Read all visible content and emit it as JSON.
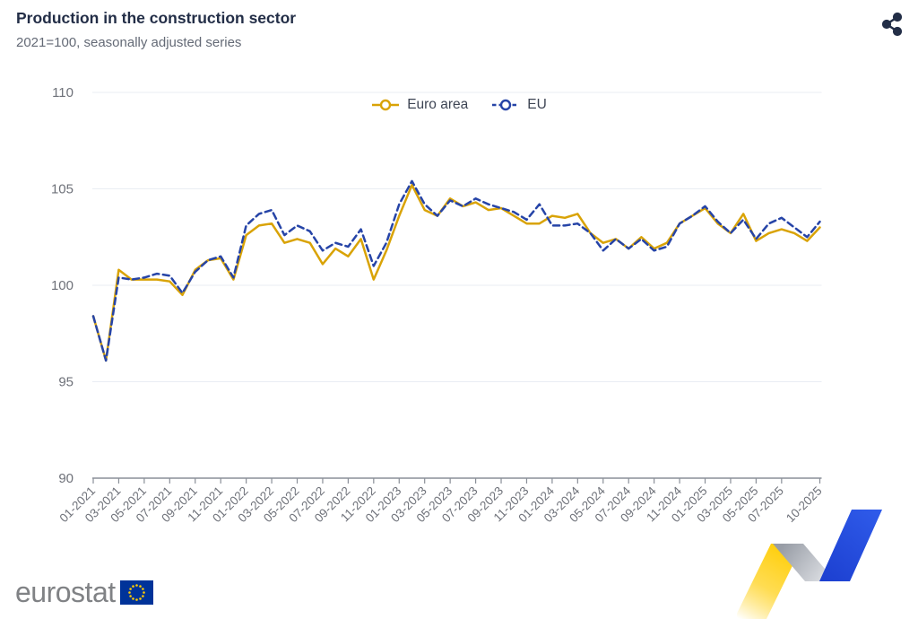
{
  "header": {
    "title": "Production in the construction sector",
    "subtitle": "2021=100, seasonally adjusted series"
  },
  "legend": {
    "items": [
      {
        "label": "Euro area"
      },
      {
        "label": "EU"
      }
    ]
  },
  "footer": {
    "logo_text": "eurostat"
  },
  "colors": {
    "euro_area_line": "#D9A306",
    "eu_line": "#2644A7",
    "title_text": "#232E47",
    "axis_text": "#6E7179",
    "gridline": "#E9EDF3",
    "axis_line": "#8A8F98",
    "eu_flag_blue": "#003399",
    "eu_flag_stars": "#FFCC00"
  },
  "chart_data": {
    "type": "line",
    "title": "Production in the construction sector",
    "subtitle": "2021=100, seasonally adjusted series",
    "ylabel": "",
    "xlabel": "",
    "ylim": [
      90,
      110
    ],
    "yticks": [
      90,
      95,
      100,
      105,
      110
    ],
    "grid": "horizontal",
    "legend_position": "top-center",
    "x": [
      "01-2021",
      "02-2021",
      "03-2021",
      "04-2021",
      "05-2021",
      "06-2021",
      "07-2021",
      "08-2021",
      "09-2021",
      "10-2021",
      "11-2021",
      "12-2021",
      "01-2022",
      "02-2022",
      "03-2022",
      "04-2022",
      "05-2022",
      "06-2022",
      "07-2022",
      "08-2022",
      "09-2022",
      "10-2022",
      "11-2022",
      "12-2022",
      "01-2023",
      "02-2023",
      "03-2023",
      "04-2023",
      "05-2023",
      "06-2023",
      "07-2023",
      "08-2023",
      "09-2023",
      "10-2023",
      "11-2023",
      "12-2023",
      "01-2024",
      "02-2024",
      "03-2024",
      "04-2024",
      "05-2024",
      "06-2024",
      "07-2024",
      "08-2024",
      "09-2024",
      "10-2024",
      "11-2024",
      "12-2024",
      "01-2025",
      "02-2025",
      "03-2025",
      "04-2025",
      "05-2025",
      "06-2025",
      "07-2025",
      "08-2025",
      "09-2025",
      "10-2025"
    ],
    "x_tick_indices": [
      0,
      2,
      4,
      6,
      8,
      10,
      12,
      14,
      16,
      18,
      20,
      22,
      24,
      26,
      28,
      30,
      32,
      34,
      36,
      38,
      40,
      42,
      44,
      46,
      48,
      50,
      52,
      54,
      57
    ],
    "series": [
      {
        "name": "Euro area",
        "color": "#D9A306",
        "style": "solid",
        "values": [
          98.4,
          96.1,
          100.8,
          100.3,
          100.3,
          100.3,
          100.2,
          99.5,
          100.8,
          101.3,
          101.4,
          100.3,
          102.6,
          103.1,
          103.2,
          102.2,
          102.4,
          102.2,
          101.1,
          101.9,
          101.5,
          102.4,
          100.3,
          101.8,
          103.6,
          105.2,
          103.9,
          103.6,
          104.5,
          104.1,
          104.3,
          103.9,
          104.0,
          103.6,
          103.2,
          103.2,
          103.6,
          103.5,
          103.7,
          102.7,
          102.2,
          102.4,
          101.9,
          102.5,
          101.9,
          102.2,
          103.2,
          103.6,
          104.0,
          103.2,
          102.7,
          103.7,
          102.3,
          102.7,
          102.9,
          102.7,
          102.3,
          103.0
        ]
      },
      {
        "name": "EU",
        "color": "#2644A7",
        "style": "dashed",
        "values": [
          98.4,
          96.1,
          100.4,
          100.3,
          100.4,
          100.6,
          100.5,
          99.6,
          100.7,
          101.3,
          101.5,
          100.4,
          103.1,
          103.7,
          103.9,
          102.6,
          103.1,
          102.8,
          101.8,
          102.2,
          102.0,
          102.9,
          101.0,
          102.2,
          104.2,
          105.4,
          104.2,
          103.6,
          104.4,
          104.1,
          104.5,
          104.2,
          104.0,
          103.8,
          103.4,
          104.2,
          103.1,
          103.1,
          103.2,
          102.7,
          101.8,
          102.4,
          101.9,
          102.4,
          101.8,
          102.0,
          103.2,
          103.6,
          104.1,
          103.3,
          102.7,
          103.4,
          102.4,
          103.2,
          103.5,
          103.0,
          102.5,
          103.3
        ]
      }
    ]
  }
}
